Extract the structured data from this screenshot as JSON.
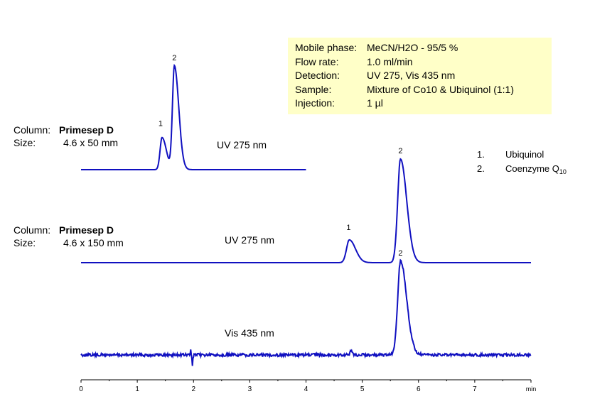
{
  "info": {
    "rows": [
      {
        "label": "Mobile phase:",
        "value": "MeCN/H2O - 95/5 %"
      },
      {
        "label": "Flow rate:",
        "value": "1.0 ml/min"
      },
      {
        "label": "Detection:",
        "value": "UV 275, Vis 435 nm"
      },
      {
        "label": "Sample:",
        "value": "Mixture of Co10 & Ubiquinol (1:1)"
      },
      {
        "label": "Injection:",
        "value": "1 µl"
      }
    ]
  },
  "columns": [
    {
      "column_label": "Column:",
      "column_value": "Primesep D",
      "size_label": "Size:",
      "size_value": "4.6 x 50 mm"
    },
    {
      "column_label": "Column:",
      "column_value": "Primesep D",
      "size_label": "Size:",
      "size_value": "4.6 x 150 mm"
    }
  ],
  "legend": {
    "items": [
      {
        "num": "1.",
        "name": "Ubiquinol"
      },
      {
        "num": "2.",
        "name_prefix": "Coenzyme Q",
        "name_sub": "10"
      }
    ]
  },
  "chart_data": {
    "type": "line",
    "x_unit": "min",
    "xlim": [
      0,
      8
    ],
    "x_ticks": [
      "0",
      "1",
      "2",
      "3",
      "4",
      "5",
      "6",
      "7"
    ],
    "line_color": "#1010c0",
    "traces": [
      {
        "detector": "UV 275 nm",
        "column": "Primesep D 4.6 x 50 mm",
        "x_range": [
          0,
          4
        ],
        "peaks": [
          {
            "label": "1",
            "rt": 1.44,
            "height": 0.31,
            "width": 0.035
          },
          {
            "label": "2",
            "rt": 1.66,
            "height": 1.0,
            "width": 0.035
          }
        ],
        "noise": 0
      },
      {
        "detector": "UV 275 nm",
        "column": "Primesep D 4.6 x 150 mm",
        "x_range": [
          0,
          8
        ],
        "peaks": [
          {
            "label": "1",
            "rt": 4.77,
            "height": 0.22,
            "width": 0.05
          },
          {
            "label": "2",
            "rt": 5.68,
            "height": 1.0,
            "width": 0.05
          }
        ],
        "noise": 0
      },
      {
        "detector": "Vis 435 nm",
        "column": "Primesep D 4.6 x 150 mm",
        "x_range": [
          0,
          8
        ],
        "peaks": [
          {
            "label": "2",
            "rt": 5.68,
            "height": 1.0,
            "width": 0.05
          }
        ],
        "noise": 1
      }
    ]
  }
}
